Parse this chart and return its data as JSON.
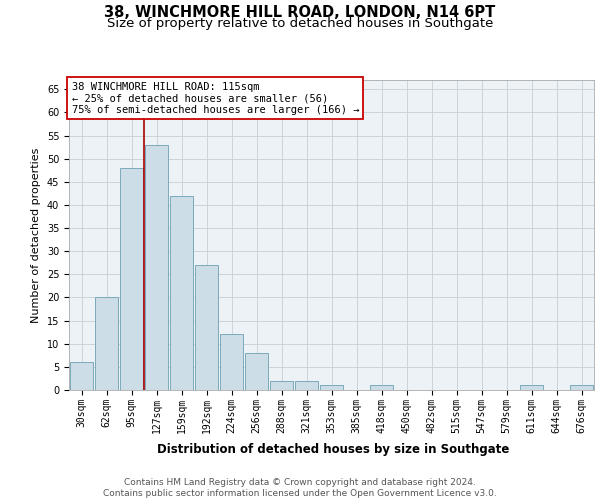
{
  "title": "38, WINCHMORE HILL ROAD, LONDON, N14 6PT",
  "subtitle": "Size of property relative to detached houses in Southgate",
  "xlabel": "Distribution of detached houses by size in Southgate",
  "ylabel": "Number of detached properties",
  "categories": [
    "30sqm",
    "62sqm",
    "95sqm",
    "127sqm",
    "159sqm",
    "192sqm",
    "224sqm",
    "256sqm",
    "288sqm",
    "321sqm",
    "353sqm",
    "385sqm",
    "418sqm",
    "450sqm",
    "482sqm",
    "515sqm",
    "547sqm",
    "579sqm",
    "611sqm",
    "644sqm",
    "676sqm"
  ],
  "values": [
    6,
    20,
    48,
    53,
    42,
    27,
    12,
    8,
    2,
    2,
    1,
    0,
    1,
    0,
    0,
    0,
    0,
    0,
    1,
    0,
    1
  ],
  "bar_color": "#ccdde8",
  "bar_edge_color": "#7aaabb",
  "bar_linewidth": 0.7,
  "vline_x_idx": 2.5,
  "vline_color": "#aa0000",
  "vline_linewidth": 1.2,
  "annotation_text": "38 WINCHMORE HILL ROAD: 115sqm\n← 25% of detached houses are smaller (56)\n75% of semi-detached houses are larger (166) →",
  "annotation_box_color": "white",
  "annotation_box_edge_color": "#cc0000",
  "ylim": [
    0,
    67
  ],
  "yticks": [
    0,
    5,
    10,
    15,
    20,
    25,
    30,
    35,
    40,
    45,
    50,
    55,
    60,
    65
  ],
  "grid_color": "#c5cfd8",
  "background_color": "#edf2f7",
  "footer_text": "Contains HM Land Registry data © Crown copyright and database right 2024.\nContains public sector information licensed under the Open Government Licence v3.0.",
  "title_fontsize": 10.5,
  "subtitle_fontsize": 9.5,
  "xlabel_fontsize": 8.5,
  "ylabel_fontsize": 8,
  "tick_fontsize": 7,
  "annotation_fontsize": 7.5,
  "footer_fontsize": 6.5
}
